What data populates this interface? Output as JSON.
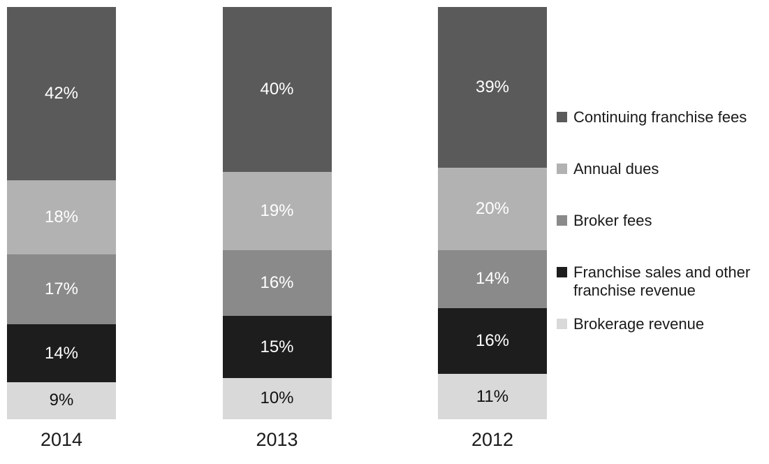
{
  "chart_data": {
    "type": "bar",
    "stacked": true,
    "orientation": "vertical",
    "title": "",
    "xlabel": "",
    "ylabel": "",
    "ylim": [
      0,
      100
    ],
    "grid": false,
    "legend_position": "right",
    "value_suffix": "%",
    "categories": [
      "2014",
      "2013",
      "2012"
    ],
    "series": [
      {
        "name": "Continuing franchise fees",
        "color": "#5a5a5a",
        "label_color": "#ffffff",
        "values": [
          42,
          40,
          39
        ]
      },
      {
        "name": "Annual dues",
        "color": "#b2b2b2",
        "label_color": "#ffffff",
        "values": [
          18,
          19,
          20
        ]
      },
      {
        "name": "Broker fees",
        "color": "#8a8a8a",
        "label_color": "#ffffff",
        "values": [
          17,
          16,
          14
        ]
      },
      {
        "name": "Franchise sales and other franchise revenue",
        "color": "#1d1d1d",
        "label_color": "#ffffff",
        "values": [
          14,
          15,
          16
        ]
      },
      {
        "name": "Brokerage revenue",
        "color": "#d9d9d9",
        "label_color": "#111111",
        "values": [
          9,
          10,
          11
        ]
      }
    ]
  },
  "colors": {
    "background": "#ffffff",
    "text": "#1a1a1a"
  }
}
